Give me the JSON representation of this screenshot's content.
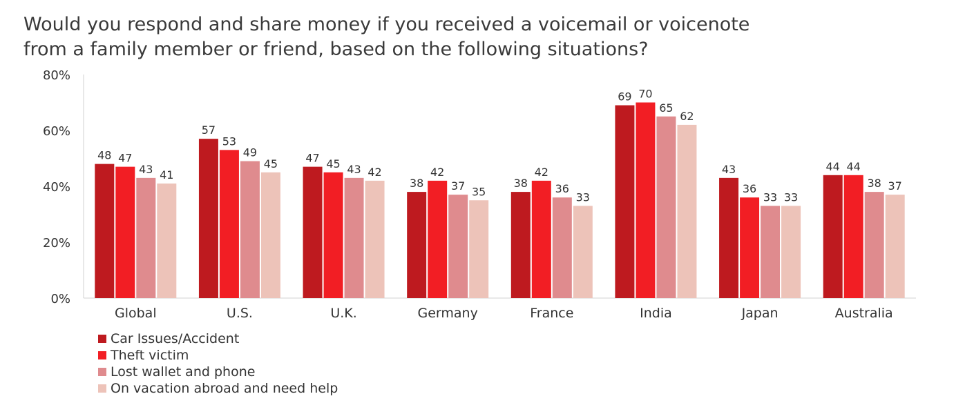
{
  "chart_data": {
    "type": "bar",
    "title_lines": [
      "Would you respond and share money if you received a voicemail or voicenote",
      "from a family member or friend, based on the following situations?"
    ],
    "categories": [
      "Global",
      "U.S.",
      "U.K.",
      "Germany",
      "France",
      "India",
      "Japan",
      "Australia"
    ],
    "series": [
      {
        "name": "Car Issues/Accident",
        "color": "#be1a1f",
        "values": [
          48,
          57,
          47,
          38,
          38,
          69,
          43,
          44
        ]
      },
      {
        "name": "Theft victim",
        "color": "#f21e24",
        "values": [
          47,
          53,
          45,
          42,
          42,
          70,
          36,
          44
        ]
      },
      {
        "name": "Lost wallet and phone",
        "color": "#df8b8e",
        "values": [
          43,
          49,
          43,
          37,
          36,
          65,
          33,
          38
        ]
      },
      {
        "name": "On vacation abroad and need help",
        "color": "#edc3b9",
        "values": [
          41,
          45,
          42,
          35,
          33,
          62,
          33,
          37
        ]
      }
    ],
    "yticks": [
      "0%",
      "20%",
      "40%",
      "60%",
      "80%"
    ],
    "ytick_values": [
      0,
      20,
      40,
      60,
      80
    ],
    "ylim": [
      0,
      80
    ],
    "xlabel": "",
    "ylabel": "",
    "legend_position": "bottom-left",
    "grid": false
  }
}
